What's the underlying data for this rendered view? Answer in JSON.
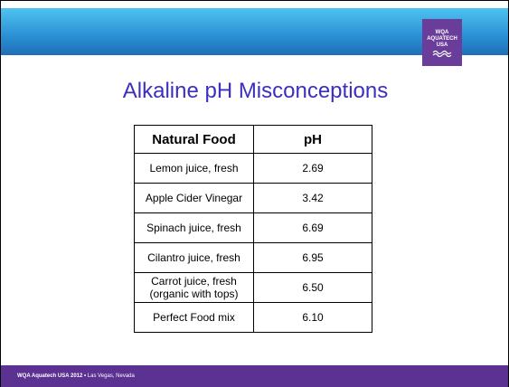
{
  "slide": {
    "logo": [
      "WQA",
      "AQUATECH",
      "USA"
    ],
    "title": "Alkaline pH Misconceptions",
    "table": {
      "header": [
        "Natural Food",
        "pH"
      ],
      "rows": [
        [
          "Lemon juice, fresh",
          "2.69"
        ],
        [
          "Apple Cider Vinegar",
          "3.42"
        ],
        [
          "Spinach juice, fresh",
          "6.69"
        ],
        [
          "Cilantro juice, fresh",
          "6.95"
        ],
        [
          "Carrot juice, fresh\n(organic with tops)",
          "6.50"
        ],
        [
          "Perfect Food mix",
          "6.10"
        ]
      ]
    },
    "footer": {
      "event": "WQA Aquatech USA 2012 •",
      "location": "Las Vegas, Nevada"
    }
  }
}
